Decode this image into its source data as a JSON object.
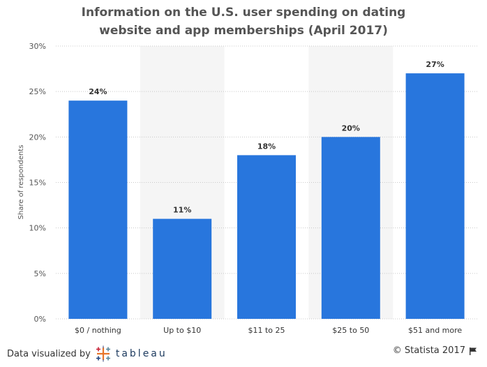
{
  "chart_data": {
    "type": "bar",
    "title": "Information on the U.S. user spending on dating website and app memberships (April 2017)",
    "title_lines": [
      "Information on the U.S. user spending on dating",
      "website and app memberships (April 2017)"
    ],
    "xlabel": "",
    "ylabel": "Share of respondents",
    "categories": [
      "$0 / nothing",
      "Up to $10",
      "$11 to 25",
      "$25 to 50",
      "$51 and more"
    ],
    "values": [
      24,
      11,
      18,
      20,
      27
    ],
    "value_labels": [
      "24%",
      "11%",
      "18%",
      "20%",
      "27%"
    ],
    "ylim": [
      0,
      30
    ],
    "yticks": [
      0,
      5,
      10,
      15,
      20,
      25,
      30
    ],
    "ytick_labels": [
      "0%",
      "5%",
      "10%",
      "15%",
      "20%",
      "25%",
      "30%"
    ],
    "grid": true,
    "bar_color": "#2876dd",
    "band_color": "#f5f5f5"
  },
  "footer": {
    "left_text": "Data visualized by",
    "tableau_word": "tableau",
    "right_text": "© Statista 2017",
    "flag_icon": "flag-icon"
  }
}
